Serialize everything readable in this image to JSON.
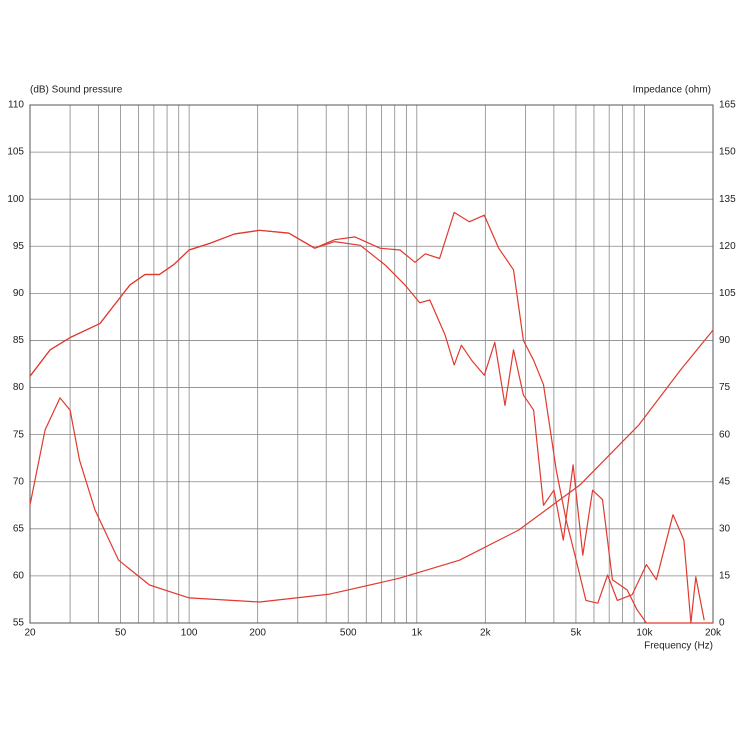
{
  "chart_data": {
    "type": "line",
    "ylabel": "(dB)  Sound pressure",
    "y2label": "Impedance  (ohm)",
    "xlabel": "Frequency  (Hz)",
    "xscale": "log",
    "xlim": [
      20,
      20000
    ],
    "xticks": [
      20,
      50,
      100,
      200,
      500,
      {
        "value": 1000,
        "label": "1k"
      },
      {
        "value": 2000,
        "label": "2k"
      },
      {
        "value": 5000,
        "label": "5k"
      },
      {
        "value": 10000,
        "label": "10k"
      },
      {
        "value": 20000,
        "label": "20k"
      }
    ],
    "xminor": [
      30,
      40,
      60,
      70,
      80,
      90,
      300,
      400,
      600,
      700,
      800,
      900,
      3000,
      4000,
      6000,
      7000,
      8000,
      9000
    ],
    "ylim": [
      55,
      110
    ],
    "yticks": [
      55,
      60,
      65,
      70,
      75,
      80,
      85,
      90,
      95,
      100,
      105,
      110
    ],
    "y2lim": [
      0,
      165
    ],
    "y2ticks": [
      0,
      15,
      30,
      45,
      60,
      75,
      90,
      105,
      120,
      135,
      150,
      165
    ],
    "grid": true,
    "series": [
      {
        "color": "#e03a30",
        "x": [
          20,
          24.5,
          30,
          40.6,
          47,
          55,
          64,
          74,
          86,
          100,
          123,
          158,
          204,
          274,
          356,
          436,
          535,
          689,
          844,
          982,
          1090,
          1260,
          1460,
          1700,
          1980,
          2290,
          2660,
          2940,
          3260,
          3600,
          4100,
          4530,
          5010,
          5530,
          6240,
          6890,
          7600,
          8830,
          10200,
          11280,
          13350,
          14900,
          16000,
          16800,
          18300
        ],
        "values": [
          81.2,
          84,
          85.3,
          86.8,
          88.8,
          90.9,
          92,
          92,
          93.1,
          94.6,
          95.3,
          96.3,
          96.7,
          96.4,
          94.8,
          95.7,
          96,
          94.8,
          94.6,
          93.3,
          94.2,
          93.7,
          98.6,
          97.6,
          98.3,
          94.8,
          92.5,
          85,
          82.9,
          80.3,
          71.2,
          65.9,
          61.7,
          57.4,
          57.1,
          60.1,
          57.4,
          58,
          61.2,
          59.6,
          66.5,
          63.8,
          55,
          59.9,
          55.3
        ]
      },
      {
        "color": "#e03a30",
        "x": [
          20,
          24.5,
          30,
          40.6,
          47,
          55,
          64,
          74,
          86,
          100,
          123,
          158,
          204,
          274,
          356,
          436,
          565,
          727,
          887,
          1030,
          1140,
          1330,
          1460,
          1570,
          1740,
          1980,
          2200,
          2440,
          2660,
          2940,
          3260,
          3600,
          4000,
          4400,
          4860,
          5360,
          5920,
          6540,
          7230,
          8400,
          9280,
          10200,
          20000
        ],
        "values": [
          81.2,
          84,
          85.3,
          86.8,
          88.8,
          90.9,
          92,
          92,
          93.1,
          94.6,
          95.3,
          96.3,
          96.7,
          96.4,
          94.8,
          95.5,
          95.1,
          93,
          90.9,
          89,
          89.3,
          85.6,
          82.4,
          84.5,
          82.9,
          81.3,
          84.8,
          78.1,
          84,
          79.2,
          77.6,
          67.5,
          69.1,
          63.8,
          71.8,
          62.2,
          69.1,
          68.1,
          59.6,
          58.5,
          56.4,
          55,
          55
        ]
      },
      {
        "color": "#e03a30",
        "axis": "y2",
        "x": [
          20,
          23.3,
          27.1,
          30,
          33,
          38.6,
          49,
          67,
          100,
          204,
          415,
          844,
          1540,
          2800,
          5210,
          9450,
          14400,
          20000
        ],
        "values": [
          37.6,
          61.5,
          71.7,
          67.8,
          51.9,
          36,
          20,
          12.1,
          8,
          6.7,
          9.2,
          14.3,
          20,
          29.6,
          44,
          63.1,
          80.6,
          93.3
        ]
      }
    ]
  }
}
